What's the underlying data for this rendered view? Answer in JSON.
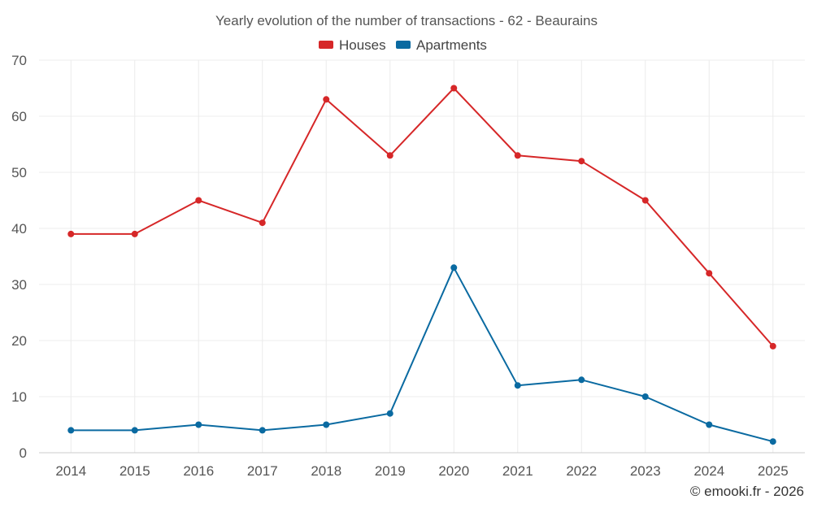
{
  "chart_data": {
    "type": "line",
    "title": "Yearly evolution of the number of transactions - 62 - Beaurains",
    "xlabel": "",
    "ylabel": "",
    "categories": [
      "2014",
      "2015",
      "2016",
      "2017",
      "2018",
      "2019",
      "2020",
      "2021",
      "2022",
      "2023",
      "2024",
      "2025"
    ],
    "ylim": [
      0,
      70
    ],
    "yticks": [
      0,
      10,
      20,
      30,
      40,
      50,
      60,
      70
    ],
    "grid": true,
    "legend_position": "top-center",
    "series": [
      {
        "name": "Houses",
        "color": "#d62728",
        "values": [
          39,
          39,
          45,
          41,
          63,
          53,
          65,
          53,
          52,
          45,
          32,
          19
        ]
      },
      {
        "name": "Apartments",
        "color": "#0a6aa1",
        "values": [
          4,
          4,
          5,
          4,
          5,
          7,
          33,
          12,
          13,
          10,
          5,
          2
        ]
      }
    ]
  },
  "credit": "© emooki.fr - 2026"
}
